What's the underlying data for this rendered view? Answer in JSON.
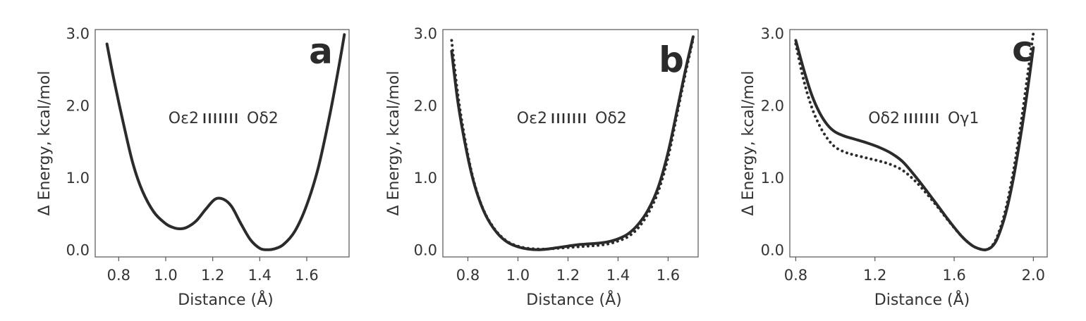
{
  "colors": {
    "curve": "#2b2b2b",
    "axis": "#555555",
    "text": "#333333"
  },
  "chart_data": [
    {
      "type": "line",
      "panel_label": "a",
      "annotation": {
        "left": "Oε2",
        "right": "Oδ2"
      },
      "xlabel": "Distance (Å)",
      "ylabel": "Δ Energy, kcal/mol",
      "xlim": [
        0.7,
        1.78
      ],
      "ylim": [
        -0.1,
        3.05
      ],
      "xticks": [
        0.8,
        1.0,
        1.2,
        1.4,
        1.6
      ],
      "xtick_labels": [
        "0.8",
        "1.0",
        "1.2",
        "1.4",
        "1.6"
      ],
      "yticks": [
        0.0,
        1.0,
        2.0,
        3.0
      ],
      "ytick_labels": [
        "0.0",
        "1.0",
        "2.0",
        "3.0"
      ],
      "grid": false,
      "series": [
        {
          "style": "solid",
          "x": [
            0.75,
            0.78,
            0.82,
            0.86,
            0.9,
            0.95,
            1.0,
            1.03,
            1.06,
            1.09,
            1.13,
            1.17,
            1.21,
            1.245,
            1.28,
            1.32,
            1.36,
            1.4,
            1.43,
            1.46,
            1.5,
            1.55,
            1.6,
            1.65,
            1.7,
            1.74,
            1.76
          ],
          "y": [
            2.85,
            2.35,
            1.75,
            1.2,
            0.82,
            0.52,
            0.36,
            0.31,
            0.29,
            0.31,
            0.4,
            0.56,
            0.7,
            0.7,
            0.6,
            0.36,
            0.14,
            0.02,
            0.0,
            0.01,
            0.07,
            0.26,
            0.62,
            1.15,
            1.9,
            2.6,
            2.98
          ]
        }
      ]
    },
    {
      "type": "line",
      "panel_label": "b",
      "annotation": {
        "left": "Oε2",
        "right": "Oδ2"
      },
      "xlabel": "Distance (Å)",
      "ylabel": "Δ Energy, kcal/mol",
      "xlim": [
        0.7,
        1.72
      ],
      "ylim": [
        -0.1,
        3.05
      ],
      "xticks": [
        0.8,
        1.0,
        1.2,
        1.4,
        1.6
      ],
      "xtick_labels": [
        "0.8",
        "1.0",
        "1.2",
        "1.4",
        "1.6"
      ],
      "yticks": [
        0.0,
        1.0,
        2.0,
        3.0
      ],
      "ytick_labels": [
        "0.0",
        "1.0",
        "2.0",
        "3.0"
      ],
      "grid": false,
      "series": [
        {
          "style": "solid",
          "x": [
            0.735,
            0.76,
            0.79,
            0.82,
            0.85,
            0.88,
            0.92,
            0.96,
            1.0,
            1.04,
            1.08,
            1.12,
            1.16,
            1.2,
            1.24,
            1.28,
            1.32,
            1.36,
            1.4,
            1.44,
            1.48,
            1.52,
            1.56,
            1.6,
            1.64,
            1.67,
            1.7
          ],
          "y": [
            2.75,
            2.05,
            1.45,
            0.98,
            0.65,
            0.42,
            0.22,
            0.1,
            0.04,
            0.01,
            0.0,
            0.01,
            0.03,
            0.05,
            0.07,
            0.08,
            0.09,
            0.11,
            0.15,
            0.22,
            0.35,
            0.55,
            0.86,
            1.35,
            2.0,
            2.5,
            2.95
          ]
        },
        {
          "style": "dotted",
          "x": [
            0.735,
            0.76,
            0.79,
            0.82,
            0.85,
            0.88,
            0.92,
            0.96,
            1.0,
            1.04,
            1.08,
            1.12,
            1.16,
            1.2,
            1.24,
            1.28,
            1.32,
            1.36,
            1.4,
            1.44,
            1.48,
            1.52,
            1.56,
            1.6,
            1.64,
            1.67,
            1.7
          ],
          "y": [
            2.9,
            2.15,
            1.5,
            1.0,
            0.66,
            0.43,
            0.23,
            0.11,
            0.05,
            0.02,
            0.01,
            0.01,
            0.02,
            0.03,
            0.04,
            0.05,
            0.06,
            0.08,
            0.12,
            0.18,
            0.3,
            0.5,
            0.8,
            1.28,
            1.95,
            2.45,
            2.92
          ]
        }
      ]
    },
    {
      "type": "line",
      "panel_label": "c",
      "annotation": {
        "left": "Oδ2",
        "right": "Oγ1"
      },
      "xlabel": "Distance (Å)",
      "ylabel": "Δ Energy, kcal/mol",
      "xlim": [
        0.77,
        2.07
      ],
      "ylim": [
        -0.1,
        3.05
      ],
      "xticks": [
        0.8,
        1.2,
        1.6,
        2.0
      ],
      "xtick_labels": [
        "0.8",
        "1.2",
        "1.6",
        "2.0"
      ],
      "yticks": [
        0.0,
        1.0,
        2.0,
        3.0
      ],
      "ytick_labels": [
        "0.0",
        "1.0",
        "2.0",
        "3.0"
      ],
      "grid": false,
      "series": [
        {
          "style": "solid",
          "x": [
            0.8,
            0.84,
            0.88,
            0.92,
            0.96,
            1.0,
            1.05,
            1.1,
            1.16,
            1.22,
            1.28,
            1.34,
            1.4,
            1.46,
            1.52,
            1.58,
            1.64,
            1.69,
            1.73,
            1.76,
            1.79,
            1.82,
            1.86,
            1.9,
            1.94,
            1.97,
            2.0
          ],
          "y": [
            2.9,
            2.5,
            2.15,
            1.9,
            1.73,
            1.63,
            1.57,
            1.53,
            1.48,
            1.42,
            1.34,
            1.22,
            1.03,
            0.82,
            0.6,
            0.38,
            0.18,
            0.06,
            0.01,
            0.0,
            0.04,
            0.17,
            0.5,
            1.0,
            1.65,
            2.2,
            2.8
          ]
        },
        {
          "style": "dotted",
          "x": [
            0.8,
            0.84,
            0.88,
            0.92,
            0.96,
            1.0,
            1.05,
            1.1,
            1.16,
            1.22,
            1.28,
            1.34,
            1.4,
            1.46,
            1.52,
            1.58,
            1.64,
            1.69,
            1.73,
            1.76,
            1.79,
            1.82,
            1.86,
            1.9,
            1.94,
            1.97,
            2.0
          ],
          "y": [
            2.85,
            2.35,
            1.98,
            1.72,
            1.54,
            1.42,
            1.35,
            1.31,
            1.27,
            1.23,
            1.18,
            1.1,
            0.96,
            0.78,
            0.58,
            0.37,
            0.18,
            0.06,
            0.01,
            0.0,
            0.05,
            0.2,
            0.56,
            1.1,
            1.8,
            2.4,
            3.0
          ]
        }
      ]
    }
  ]
}
